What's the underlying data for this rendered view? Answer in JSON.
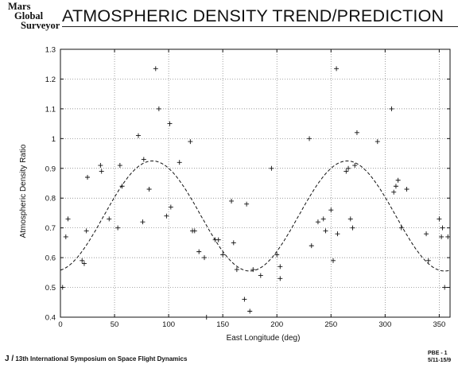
{
  "logo": {
    "line1": "Mars",
    "line2": "Global",
    "line3": "Surveyor"
  },
  "title": "ATMOSPHERIC DENSITY TREND/PREDICTION",
  "footer": {
    "left_prefix": "J /",
    "left_text": " 13th International Symposium on Space Flight Dynamics",
    "right_line1": "PBE - 1",
    "right_line2": "5/11-15/9"
  },
  "chart_data": {
    "type": "scatter",
    "title": "",
    "xlabel": "East Longitude (deg)",
    "ylabel": "Atmospheric Density Ratio",
    "xlim": [
      0,
      360
    ],
    "ylim": [
      0.4,
      1.3
    ],
    "xticks": [
      0,
      50,
      100,
      150,
      200,
      250,
      300,
      350
    ],
    "yticks": [
      0.4,
      0.5,
      0.6,
      0.7,
      0.8,
      0.9,
      1.0,
      1.1,
      1.2,
      1.3
    ],
    "ytick_labels": [
      "0.4",
      "0.5",
      "0.6",
      "0.7",
      "0.8",
      "0.9",
      "1",
      "1.1",
      "1.2",
      "1.3"
    ],
    "grid": true,
    "series": [
      {
        "marker": "plus",
        "points": [
          [
            2,
            0.5
          ],
          [
            5,
            0.67
          ],
          [
            7,
            0.73
          ],
          [
            20,
            0.59
          ],
          [
            22,
            0.58
          ],
          [
            24,
            0.69
          ],
          [
            25,
            0.87
          ],
          [
            37,
            0.91
          ],
          [
            38,
            0.89
          ],
          [
            45,
            0.73
          ],
          [
            53,
            0.7
          ],
          [
            55,
            0.91
          ],
          [
            57,
            0.84
          ],
          [
            72,
            1.01
          ],
          [
            76,
            0.72
          ],
          [
            77,
            0.93
          ],
          [
            82,
            0.83
          ],
          [
            88,
            1.235
          ],
          [
            91,
            1.1
          ],
          [
            98,
            0.74
          ],
          [
            101,
            1.05
          ],
          [
            102,
            0.77
          ],
          [
            110,
            0.92
          ],
          [
            120,
            0.99
          ],
          [
            122,
            0.69
          ],
          [
            124,
            0.69
          ],
          [
            128,
            0.62
          ],
          [
            133,
            0.6
          ],
          [
            135,
            0.4
          ],
          [
            143,
            0.66
          ],
          [
            146,
            0.66
          ],
          [
            150,
            0.61
          ],
          [
            158,
            0.79
          ],
          [
            160,
            0.65
          ],
          [
            163,
            0.56
          ],
          [
            170,
            0.46
          ],
          [
            172,
            0.78
          ],
          [
            175,
            0.42
          ],
          [
            178,
            0.56
          ],
          [
            185,
            0.54
          ],
          [
            195,
            0.9
          ],
          [
            200,
            0.61
          ],
          [
            203,
            0.57
          ],
          [
            203,
            0.53
          ],
          [
            230,
            1.0
          ],
          [
            232,
            0.64
          ],
          [
            238,
            0.72
          ],
          [
            243,
            0.73
          ],
          [
            245,
            0.69
          ],
          [
            250,
            0.76
          ],
          [
            252,
            0.59
          ],
          [
            255,
            1.235
          ],
          [
            256,
            0.68
          ],
          [
            264,
            0.89
          ],
          [
            266,
            0.9
          ],
          [
            268,
            0.73
          ],
          [
            270,
            0.7
          ],
          [
            272,
            0.91
          ],
          [
            274,
            1.02
          ],
          [
            293,
            0.99
          ],
          [
            306,
            1.1
          ],
          [
            308,
            0.82
          ],
          [
            310,
            0.84
          ],
          [
            312,
            0.86
          ],
          [
            315,
            0.7
          ],
          [
            320,
            0.83
          ],
          [
            338,
            0.68
          ],
          [
            340,
            0.59
          ],
          [
            350,
            0.73
          ],
          [
            352,
            0.67
          ],
          [
            353,
            0.7
          ],
          [
            355,
            0.5
          ],
          [
            358,
            0.67
          ]
        ]
      },
      {
        "marker": "dashed-line",
        "fit": {
          "mean": 0.74,
          "amplitude": 0.185,
          "cycles": 2,
          "peak_longitude": 85
        }
      }
    ]
  }
}
